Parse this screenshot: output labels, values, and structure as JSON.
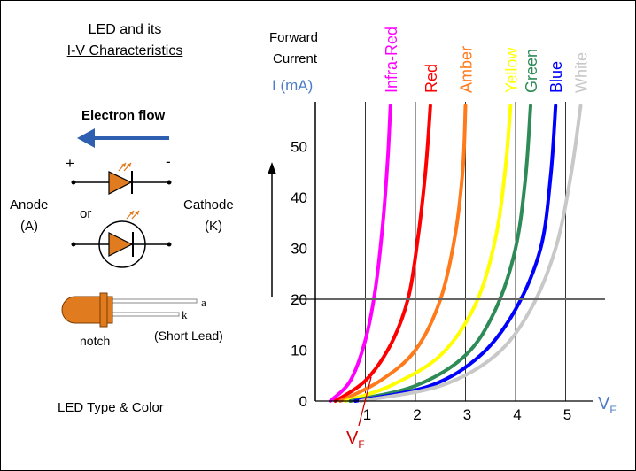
{
  "title_line1": "LED and its",
  "title_line2": "I-V Characteristics",
  "electron_flow_label": "Electron flow",
  "plus_sign": "+",
  "minus_sign": "-",
  "or_label": "or",
  "anode_label": "Anode",
  "anode_symbol": "(A)",
  "cathode_label": "Cathode",
  "cathode_symbol": "(K)",
  "lead_a_label": "a",
  "lead_k_label": "k",
  "notch_label": "notch",
  "short_lead_label": "(Short Lead)",
  "led_type_label": "LED Type & Color",
  "colors": {
    "arrow": "#2e5fb1",
    "led_body": "#e07b1f",
    "axis_label_blue": "#4a7cc7",
    "vf_red": "#d40000",
    "grid": "#000000",
    "threshold_line": "#666666"
  },
  "chart_data": {
    "type": "line",
    "ylabel_line1": "Forward",
    "ylabel_line2": "Current",
    "y_unit": "I (mA)",
    "xlabel": "V",
    "xlabel_sub": "F",
    "threshold_label": "V",
    "threshold_label_sub": "F",
    "xlim": [
      0,
      5.5
    ],
    "ylim": [
      0,
      58
    ],
    "x_ticks": [
      1,
      2,
      3,
      4,
      5
    ],
    "y_ticks": [
      0,
      10,
      20,
      30,
      40,
      50
    ],
    "vertical_gridlines": [
      1,
      2,
      3,
      4,
      5
    ],
    "horizontal_reference": 20,
    "series": [
      {
        "name": "Infra-Red",
        "color": "#ff00ff",
        "x": [
          0.3,
          0.7,
          1.0,
          1.2,
          1.35,
          1.45,
          1.5
        ],
        "y": [
          0,
          4,
          12,
          22,
          35,
          48,
          58
        ]
      },
      {
        "name": "Red",
        "color": "#ff0000",
        "x": [
          0.4,
          1.0,
          1.5,
          1.85,
          2.05,
          2.2,
          2.3
        ],
        "y": [
          0,
          4,
          11,
          20,
          32,
          45,
          58
        ]
      },
      {
        "name": "Amber",
        "color": "#ff7a1a",
        "x": [
          0.5,
          1.3,
          2.0,
          2.5,
          2.8,
          2.95,
          3.0
        ],
        "y": [
          0,
          4,
          10,
          20,
          33,
          46,
          58
        ]
      },
      {
        "name": "Yellow",
        "color": "#ffff00",
        "x": [
          0.6,
          1.5,
          2.5,
          3.2,
          3.6,
          3.8,
          3.9
        ],
        "y": [
          0,
          3,
          9,
          19,
          32,
          46,
          58
        ]
      },
      {
        "name": "Green",
        "color": "#2e8b57",
        "x": [
          0.7,
          2.0,
          3.0,
          3.6,
          4.0,
          4.2,
          4.3
        ],
        "y": [
          0,
          3,
          9,
          18,
          30,
          44,
          58
        ]
      },
      {
        "name": "Blue",
        "color": "#0000ff",
        "x": [
          0.8,
          2.3,
          3.3,
          4.0,
          4.5,
          4.7,
          4.8
        ],
        "y": [
          0,
          3,
          9,
          18,
          30,
          44,
          58
        ]
      },
      {
        "name": "White",
        "color": "#c8c8c8",
        "x": [
          0.9,
          2.5,
          3.6,
          4.3,
          4.8,
          5.1,
          5.3
        ],
        "y": [
          0,
          3,
          9,
          18,
          30,
          44,
          58
        ]
      }
    ]
  }
}
